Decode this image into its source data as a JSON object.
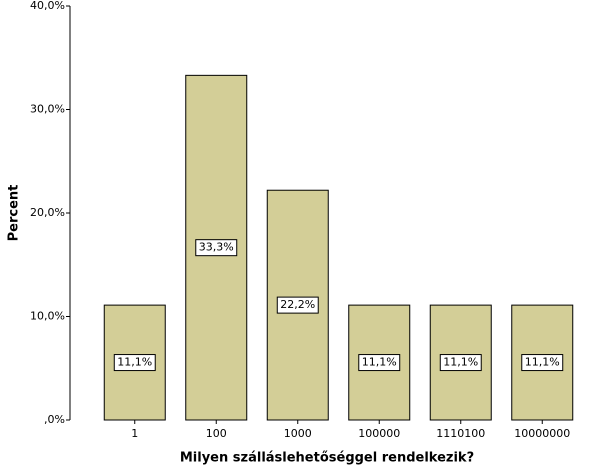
{
  "chart_data": {
    "type": "bar",
    "x_label": "Milyen szálláslehetőséggel rendelkezik?",
    "y_label": "Percent",
    "categories": [
      "1",
      "100",
      "1000",
      "100000",
      "1110100",
      "10000000"
    ],
    "values": [
      11.1,
      33.3,
      22.2,
      11.1,
      11.1,
      11.1
    ],
    "value_labels": [
      "11,1%",
      "33,3%",
      "22,2%",
      "11,1%",
      "11,1%",
      "11,1%"
    ],
    "color": "#d3ce97",
    "ylim": [
      0,
      40
    ],
    "yticks": [
      {
        "value": 0,
        "label": ",0%"
      },
      {
        "value": 10,
        "label": "10,0%"
      },
      {
        "value": 20,
        "label": "20,0%"
      },
      {
        "value": 30,
        "label": "30,0%"
      },
      {
        "value": 40,
        "label": "40,0%"
      }
    ],
    "grid": false
  }
}
